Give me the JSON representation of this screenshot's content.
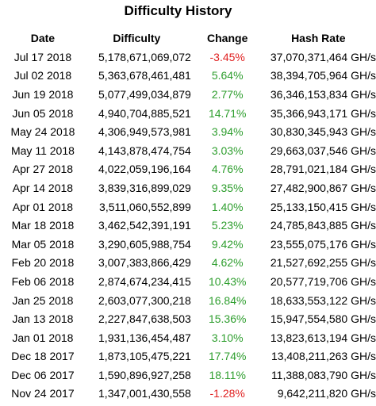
{
  "title": "Difficulty History",
  "headers": {
    "date": "Date",
    "difficulty": "Difficulty",
    "change": "Change",
    "hash_rate": "Hash Rate"
  },
  "colors": {
    "positive": "#2e9e2e",
    "negative": "#e02020"
  },
  "rows": [
    {
      "date": "Jul 17 2018",
      "difficulty": "5,178,671,069,072",
      "change": "-3.45%",
      "hash_rate": "37,070,371,464 GH/s"
    },
    {
      "date": "Jul 02 2018",
      "difficulty": "5,363,678,461,481",
      "change": "5.64%",
      "hash_rate": "38,394,705,964 GH/s"
    },
    {
      "date": "Jun 19 2018",
      "difficulty": "5,077,499,034,879",
      "change": "2.77%",
      "hash_rate": "36,346,153,834 GH/s"
    },
    {
      "date": "Jun 05 2018",
      "difficulty": "4,940,704,885,521",
      "change": "14.71%",
      "hash_rate": "35,366,943,171 GH/s"
    },
    {
      "date": "May 24 2018",
      "difficulty": "4,306,949,573,981",
      "change": "3.94%",
      "hash_rate": "30,830,345,943 GH/s"
    },
    {
      "date": "May 11 2018",
      "difficulty": "4,143,878,474,754",
      "change": "3.03%",
      "hash_rate": "29,663,037,546 GH/s"
    },
    {
      "date": "Apr 27 2018",
      "difficulty": "4,022,059,196,164",
      "change": "4.76%",
      "hash_rate": "28,791,021,184 GH/s"
    },
    {
      "date": "Apr 14 2018",
      "difficulty": "3,839,316,899,029",
      "change": "9.35%",
      "hash_rate": "27,482,900,867 GH/s"
    },
    {
      "date": "Apr 01 2018",
      "difficulty": "3,511,060,552,899",
      "change": "1.40%",
      "hash_rate": "25,133,150,415 GH/s"
    },
    {
      "date": "Mar 18 2018",
      "difficulty": "3,462,542,391,191",
      "change": "5.23%",
      "hash_rate": "24,785,843,885 GH/s"
    },
    {
      "date": "Mar 05 2018",
      "difficulty": "3,290,605,988,754",
      "change": "9.42%",
      "hash_rate": "23,555,075,176 GH/s"
    },
    {
      "date": "Feb 20 2018",
      "difficulty": "3,007,383,866,429",
      "change": "4.62%",
      "hash_rate": "21,527,692,255 GH/s"
    },
    {
      "date": "Feb 06 2018",
      "difficulty": "2,874,674,234,415",
      "change": "10.43%",
      "hash_rate": "20,577,719,706 GH/s"
    },
    {
      "date": "Jan 25 2018",
      "difficulty": "2,603,077,300,218",
      "change": "16.84%",
      "hash_rate": "18,633,553,122 GH/s"
    },
    {
      "date": "Jan 13 2018",
      "difficulty": "2,227,847,638,503",
      "change": "15.36%",
      "hash_rate": "15,947,554,580 GH/s"
    },
    {
      "date": "Jan 01 2018",
      "difficulty": "1,931,136,454,487",
      "change": "3.10%",
      "hash_rate": "13,823,613,194 GH/s"
    },
    {
      "date": "Dec 18 2017",
      "difficulty": "1,873,105,475,221",
      "change": "17.74%",
      "hash_rate": "13,408,211,263 GH/s"
    },
    {
      "date": "Dec 06 2017",
      "difficulty": "1,590,896,927,258",
      "change": "18.11%",
      "hash_rate": "11,388,083,790 GH/s"
    },
    {
      "date": "Nov 24 2017",
      "difficulty": "1,347,001,430,558",
      "change": "-1.28%",
      "hash_rate": "9,642,211,820 GH/s"
    }
  ]
}
